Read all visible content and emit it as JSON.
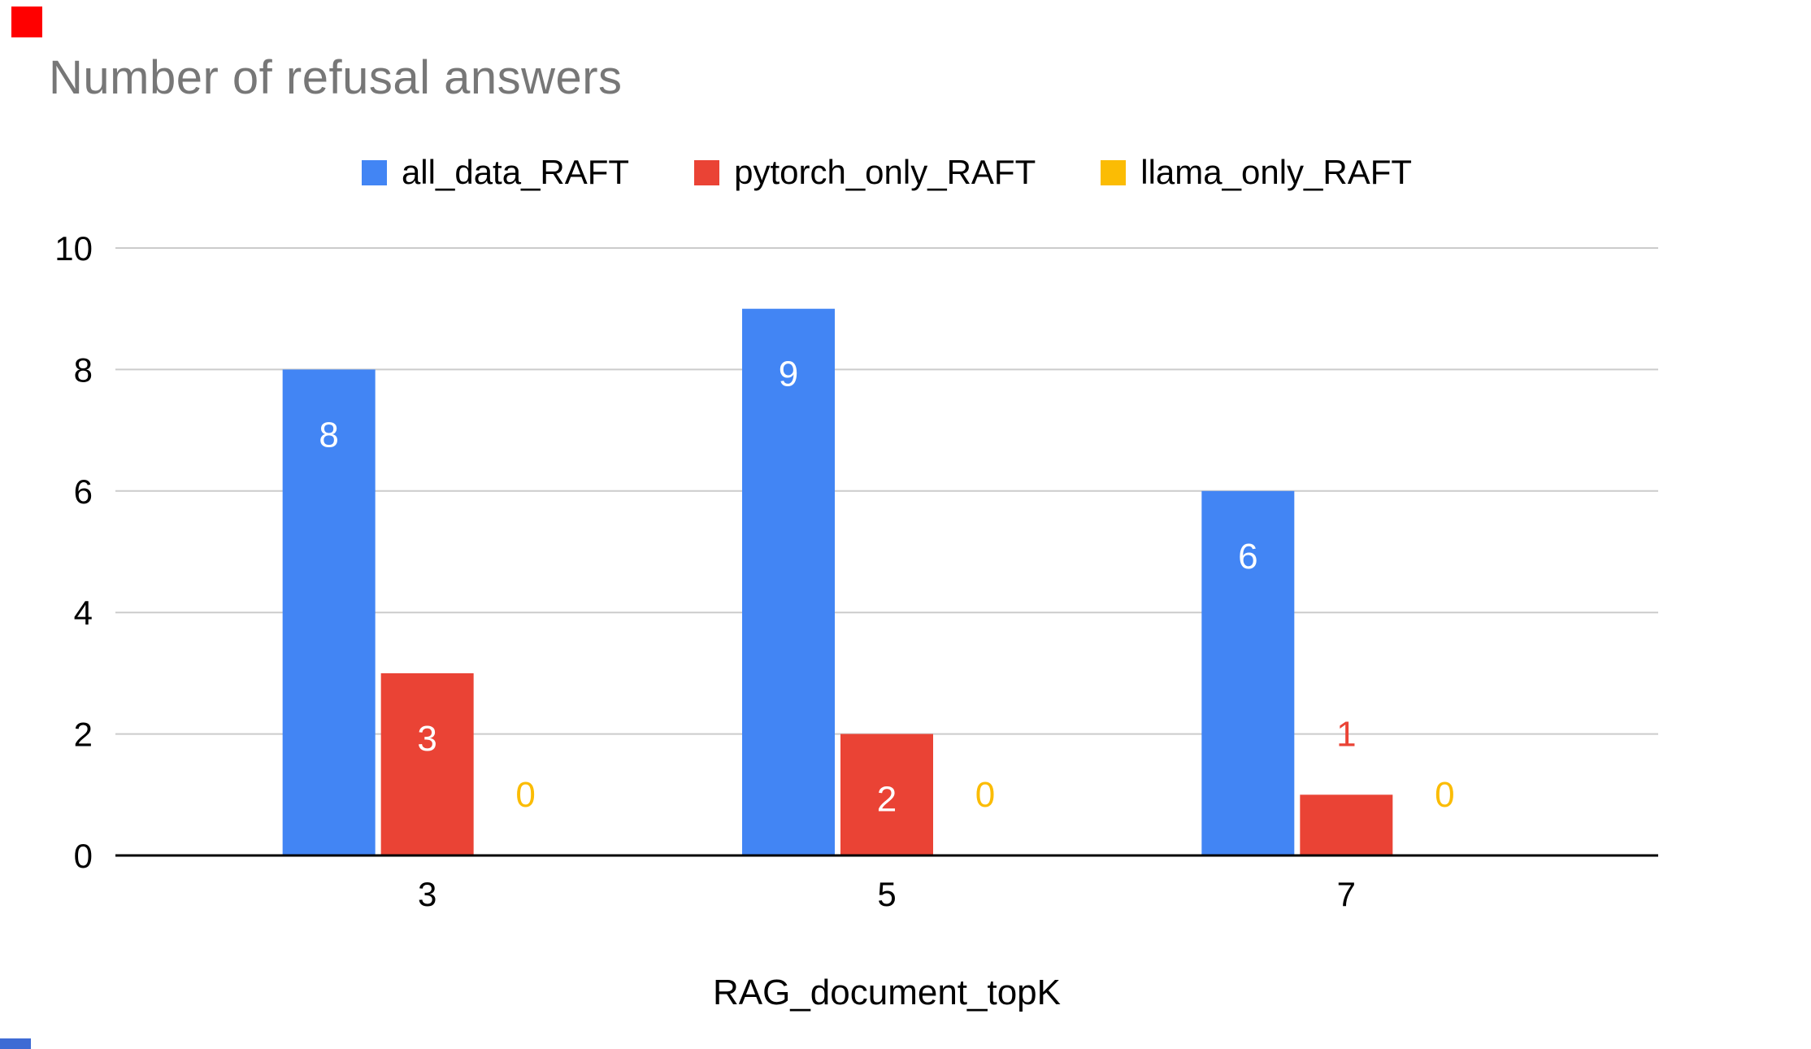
{
  "decorations": {
    "top_left_square_color": "#FF0000",
    "bottom_left_bar_color": "#3E6BD4"
  },
  "chart_data": {
    "type": "bar",
    "title": "Number of refusal answers",
    "xlabel": "RAG_document_topK",
    "ylabel": "",
    "categories": [
      "3",
      "5",
      "7"
    ],
    "series": [
      {
        "name": "all_data_RAFT",
        "color": "#4285F4",
        "values": [
          8,
          9,
          6
        ]
      },
      {
        "name": "pytorch_only_RAFT",
        "color": "#EA4335",
        "values": [
          3,
          2,
          1
        ]
      },
      {
        "name": "llama_only_RAFT",
        "color": "#FBBC04",
        "values": [
          0,
          0,
          0
        ]
      }
    ],
    "yticks": [
      0,
      2,
      4,
      6,
      8,
      10
    ],
    "ylim": [
      0,
      10
    ],
    "grid": true,
    "legend_position": "top",
    "data_labels": true,
    "gridline_color": "#CCCCCC",
    "axis_color": "#000000"
  }
}
